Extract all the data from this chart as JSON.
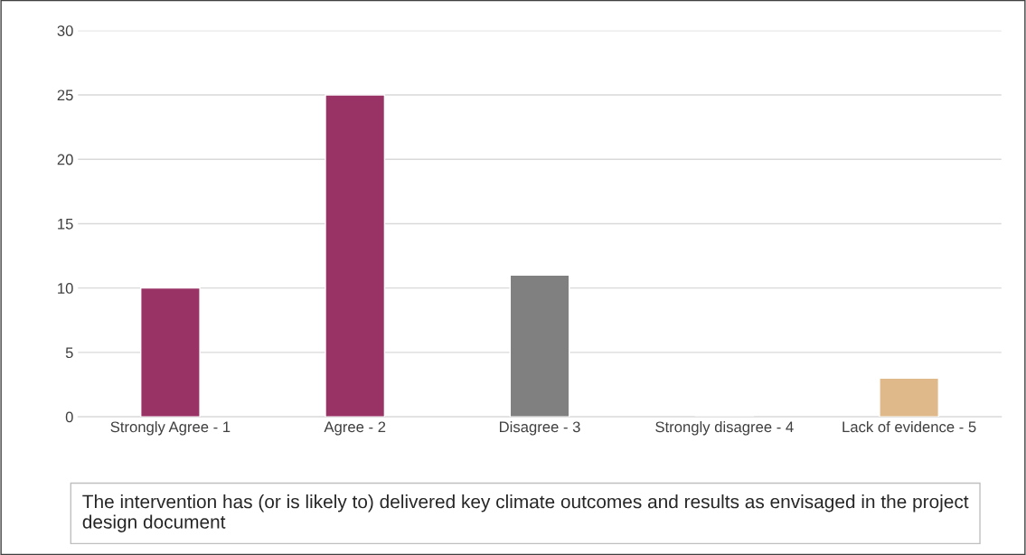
{
  "chart_data": {
    "type": "bar",
    "categories": [
      "Strongly Agree - 1",
      "Agree - 2",
      "Disagree - 3",
      "Strongly disagree - 4",
      "Lack of evidence - 5"
    ],
    "values": [
      10,
      25,
      11,
      0,
      3
    ],
    "colors": [
      "#993366",
      "#993366",
      "#808080",
      null,
      "#dfb98a"
    ],
    "ylim": [
      0,
      30
    ],
    "yticks": [
      0,
      5,
      10,
      15,
      20,
      25,
      30
    ],
    "grid": "y",
    "legend": false,
    "annotations": [
      "The intervention has (or is likely to) delivered key climate outcomes and results as envisaged in the project design document"
    ]
  }
}
